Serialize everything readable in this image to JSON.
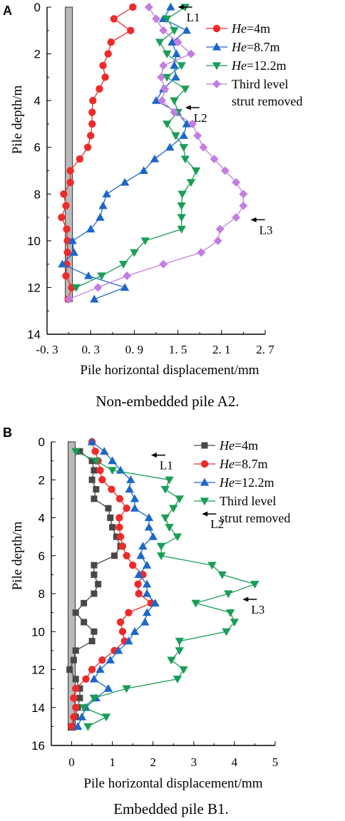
{
  "chart_data": [
    {
      "panel": "A",
      "type": "line",
      "caption": "Non-embedded pile A2.",
      "xlabel": "Pile horizontal displacement/mm",
      "ylabel": "Pile depth/m",
      "xlim": [
        -0.3,
        2.7
      ],
      "ylim": [
        14,
        0
      ],
      "xticks": [
        -0.3,
        0.3,
        0.9,
        1.5,
        2.1,
        2.7
      ],
      "xtick_labels": [
        "-0. 3",
        "0. 3",
        "0. 9",
        "1. 5",
        "2. 1",
        "2. 7"
      ],
      "yticks": [
        0,
        2,
        4,
        6,
        8,
        10,
        12,
        14
      ],
      "x_minor_step": 0.3,
      "y_minor_step": 1,
      "pile_x": 0.0,
      "pile_depth": 12.6,
      "legend": "top-right",
      "legend_labels": [
        {
          "italic": "He",
          "rest": "=4m"
        },
        {
          "italic": "He",
          "rest": "=8.7m"
        },
        {
          "italic": "He",
          "rest": "=12.2m"
        },
        {
          "italic": "",
          "rest": "Third level"
        }
      ],
      "legend_extra": "strut removed",
      "series": [
        {
          "name": "He=4m",
          "color": "#ee2b2b",
          "marker": "circle",
          "x": [
            0.88,
            0.62,
            0.85,
            0.58,
            0.54,
            0.47,
            0.5,
            0.42,
            0.33,
            0.32,
            0.32,
            0.3,
            0.26,
            0.15,
            0.02,
            0.02,
            -0.07,
            -0.04,
            -0.1,
            -0.03,
            -0.02,
            -0.02,
            -0.03,
            -0.04,
            0.04,
            -0.01
          ],
          "y": [
            0,
            0.5,
            1,
            1.5,
            2,
            2.5,
            3,
            3.5,
            4,
            4.5,
            5,
            5.5,
            6,
            6.5,
            7,
            7.5,
            8,
            8.5,
            9,
            9.5,
            10,
            10.5,
            11,
            11.5,
            12,
            12.5
          ]
        },
        {
          "name": "He=8.7m",
          "color": "#1d67c9",
          "marker": "triangle-up",
          "x": [
            1.4,
            1.3,
            1.62,
            1.42,
            1.48,
            1.45,
            1.47,
            1.3,
            1.2,
            1.49,
            1.62,
            1.58,
            1.39,
            1.18,
            1.03,
            0.77,
            0.52,
            0.47,
            0.43,
            0.3,
            0.05,
            0.07,
            -0.09,
            0.27,
            0.77,
            0.35
          ],
          "y": [
            0,
            0.5,
            1,
            1.5,
            2,
            2.5,
            3,
            3.5,
            4,
            4.5,
            5,
            5.5,
            6,
            6.5,
            7,
            7.5,
            8,
            8.5,
            9,
            9.5,
            10,
            10.5,
            11,
            11.5,
            12,
            12.5
          ]
        },
        {
          "name": "He=12.2m",
          "color": "#1a9e57",
          "marker": "triangle-down",
          "x": [
            1.6,
            1.35,
            1.45,
            1.25,
            1.35,
            1.55,
            1.35,
            1.6,
            1.45,
            1.5,
            1.35,
            1.47,
            1.58,
            1.6,
            1.75,
            1.68,
            1.56,
            1.55,
            1.55,
            1.55,
            1.05,
            0.9,
            0.75,
            0.45,
            0.1
          ],
          "y": [
            0,
            0.5,
            1,
            1.5,
            2,
            2.5,
            3,
            3.5,
            4,
            4.5,
            5,
            5.5,
            6,
            6.5,
            7,
            7.5,
            8,
            8.5,
            9,
            9.5,
            10,
            10.5,
            11,
            11.5,
            12
          ]
        },
        {
          "name": "Third level strut removed",
          "color": "#c37de2",
          "marker": "diamond",
          "x": [
            1.1,
            1.2,
            1.3,
            1.5,
            1.68,
            1.3,
            1.27,
            1.32,
            1.28,
            1.45,
            1.7,
            1.77,
            1.85,
            2.0,
            2.15,
            2.3,
            2.4,
            2.4,
            2.3,
            2.08,
            2.05,
            1.82,
            1.3,
            0.8,
            0.4,
            0.0
          ],
          "y": [
            0,
            0.5,
            1,
            1.5,
            2,
            2.5,
            3,
            3.5,
            4,
            4.5,
            5,
            5.5,
            6,
            6.5,
            7,
            7.5,
            8,
            8.5,
            9,
            9.5,
            10,
            10.5,
            11,
            11.5,
            12,
            12.5
          ]
        }
      ],
      "annotations": [
        {
          "text": "L1",
          "x": 1.5,
          "y": 0
        },
        {
          "text": "L2",
          "x": 1.6,
          "y": 4.3
        },
        {
          "text": "L3",
          "x": 2.5,
          "y": 9.1
        }
      ]
    },
    {
      "panel": "B",
      "type": "line",
      "caption": "Embedded pile B1.",
      "xlabel": "Pile horizontal displacement/mm",
      "ylabel": "Pile depth/m",
      "xlim": [
        -0.5,
        5
      ],
      "ylim": [
        16,
        0
      ],
      "xticks": [
        0,
        1,
        2,
        3,
        4,
        5
      ],
      "xtick_labels": [
        "0",
        "1",
        "2",
        "3",
        "4",
        "5"
      ],
      "yticks": [
        0,
        2,
        4,
        6,
        8,
        10,
        12,
        14,
        16
      ],
      "x_minor_step": 0.5,
      "y_minor_step": 1,
      "pile_x": 0.0,
      "pile_depth": 15.2,
      "legend": "top-right",
      "legend_labels": [
        {
          "italic": "He",
          "rest": "=4m"
        },
        {
          "italic": "He",
          "rest": "=8.7m"
        },
        {
          "italic": "He",
          "rest": "=12.2m"
        },
        {
          "italic": "",
          "rest": "Third level"
        }
      ],
      "legend_extra": "strut removed",
      "series": [
        {
          "name": "He=4m",
          "color": "#484848",
          "marker": "square",
          "x": [
            0.2,
            0.5,
            0.55,
            0.5,
            0.6,
            0.55,
            0.9,
            0.95,
            1.0,
            1.1,
            1.2,
            1.05,
            0.55,
            0.55,
            0.65,
            0.55,
            0.3,
            0.1,
            0.3,
            0.55,
            0.5,
            0.1,
            0.05,
            -0.05,
            0.1,
            0.2,
            0.2,
            0.15,
            0.1,
            0.0
          ],
          "y": [
            0.5,
            1.0,
            1.5,
            2.0,
            2.5,
            3.0,
            3.5,
            4.0,
            4.5,
            5.0,
            5.5,
            6.0,
            6.5,
            7.0,
            7.5,
            8.0,
            8.5,
            9.0,
            9.5,
            10.0,
            10.5,
            11.0,
            11.5,
            12.0,
            12.5,
            13.0,
            13.5,
            14.0,
            14.5,
            15.0
          ]
        },
        {
          "name": "He=8.7m",
          "color": "#ee2b2b",
          "marker": "circle",
          "x": [
            0.5,
            0.58,
            0.65,
            0.7,
            0.75,
            0.98,
            1.18,
            1.35,
            1.17,
            1.17,
            1.2,
            1.25,
            1.35,
            1.5,
            1.75,
            1.63,
            1.65,
            1.95,
            1.4,
            1.2,
            1.25,
            1.3,
            1.05,
            0.75,
            0.5,
            0.35,
            0.1,
            0.05,
            0.1,
            0.05,
            0.0
          ],
          "y": [
            0.0,
            0.5,
            1.0,
            1.5,
            2.0,
            2.5,
            3.0,
            3.5,
            4.0,
            4.5,
            5.0,
            5.5,
            6.0,
            6.5,
            7.0,
            7.5,
            8.0,
            8.5,
            9.0,
            9.5,
            10.0,
            10.5,
            11.0,
            11.5,
            12.0,
            12.5,
            13.0,
            13.5,
            14.0,
            14.5,
            15.0
          ]
        },
        {
          "name": "He=12.2m",
          "color": "#1d67c9",
          "marker": "triangle-up",
          "x": [
            0.5,
            0.8,
            1.0,
            1.2,
            1.45,
            1.42,
            1.55,
            1.55,
            1.9,
            1.9,
            2.0,
            1.75,
            1.7,
            1.85,
            1.65,
            1.85,
            1.85,
            2.05,
            1.85,
            1.8,
            1.55,
            1.4,
            1.15,
            0.95,
            0.7,
            0.55,
            0.9,
            0.6,
            0.35,
            0.25,
            0.15
          ],
          "y": [
            0.0,
            0.5,
            1.0,
            1.5,
            2.0,
            2.5,
            3.0,
            3.5,
            4.0,
            4.5,
            5.0,
            5.5,
            6.0,
            6.5,
            7.0,
            7.5,
            8.0,
            8.5,
            9.0,
            9.5,
            10.0,
            10.5,
            11.0,
            11.5,
            12.0,
            12.5,
            13.0,
            13.5,
            14.0,
            14.5,
            15.0
          ]
        },
        {
          "name": "Third level strut removed",
          "color": "#1a9e57",
          "marker": "triangle-down",
          "x": [
            0.1,
            0.6,
            1.0,
            2.4,
            2.3,
            2.65,
            2.5,
            2.3,
            2.4,
            2.6,
            2.2,
            2.2,
            3.45,
            3.7,
            4.5,
            3.85,
            3.05,
            3.9,
            4.0,
            3.8,
            2.65,
            2.65,
            2.45,
            2.75,
            2.6,
            1.35,
            0.55,
            0.3,
            0.85,
            0.4
          ],
          "y": [
            0.5,
            1.0,
            1.5,
            2.0,
            2.5,
            3.0,
            3.5,
            4.0,
            4.5,
            5.0,
            5.5,
            6.0,
            6.5,
            7.0,
            7.5,
            8.0,
            8.5,
            9.0,
            9.5,
            10.0,
            10.5,
            11.0,
            11.5,
            12.0,
            12.5,
            13.0,
            13.5,
            14.0,
            14.5,
            15.0
          ]
        }
      ],
      "annotations": [
        {
          "text": "L1",
          "x": 1.95,
          "y": 0.7
        },
        {
          "text": "L2",
          "x": 3.2,
          "y": 3.8
        },
        {
          "text": "L3",
          "x": 4.2,
          "y": 8.3
        }
      ]
    }
  ]
}
